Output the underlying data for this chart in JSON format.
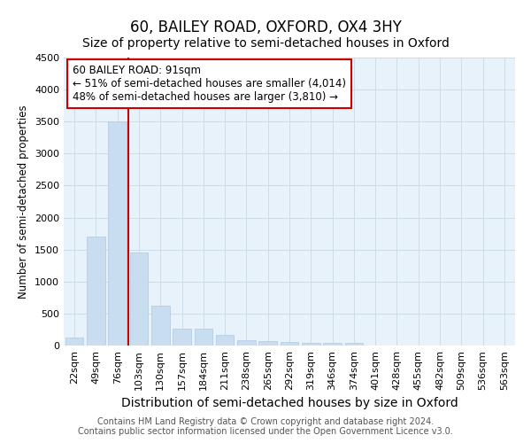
{
  "title": "60, BAILEY ROAD, OXFORD, OX4 3HY",
  "subtitle": "Size of property relative to semi-detached houses in Oxford",
  "xlabel": "Distribution of semi-detached houses by size in Oxford",
  "ylabel": "Number of semi-detached properties",
  "categories": [
    "22sqm",
    "49sqm",
    "76sqm",
    "103sqm",
    "130sqm",
    "157sqm",
    "184sqm",
    "211sqm",
    "238sqm",
    "265sqm",
    "292sqm",
    "319sqm",
    "346sqm",
    "374sqm",
    "401sqm",
    "428sqm",
    "455sqm",
    "482sqm",
    "509sqm",
    "536sqm",
    "563sqm"
  ],
  "values": [
    130,
    1700,
    3500,
    1450,
    620,
    270,
    270,
    160,
    90,
    70,
    50,
    45,
    40,
    40,
    0,
    0,
    0,
    0,
    0,
    0,
    0
  ],
  "bar_color": "#c9ddf0",
  "bar_edge_color": "#b0c8e0",
  "property_line_x": 3.0,
  "annotation_text_line1": "60 BAILEY ROAD: 91sqm",
  "annotation_text_line2": "← 51% of semi-detached houses are smaller (4,014)",
  "annotation_text_line3": "48% of semi-detached houses are larger (3,810) →",
  "annotation_box_facecolor": "#ffffff",
  "annotation_box_edgecolor": "#cc0000",
  "vertical_line_color": "#cc0000",
  "ylim": [
    0,
    4500
  ],
  "yticks": [
    0,
    500,
    1000,
    1500,
    2000,
    2500,
    3000,
    3500,
    4000,
    4500
  ],
  "grid_color": "#ccdde8",
  "background_color": "#e8f2fa",
  "footer_line1": "Contains HM Land Registry data © Crown copyright and database right 2024.",
  "footer_line2": "Contains public sector information licensed under the Open Government Licence v3.0.",
  "title_fontsize": 12,
  "subtitle_fontsize": 10,
  "xlabel_fontsize": 10,
  "ylabel_fontsize": 8.5,
  "tick_fontsize": 8,
  "annotation_fontsize": 8.5,
  "footer_fontsize": 7
}
